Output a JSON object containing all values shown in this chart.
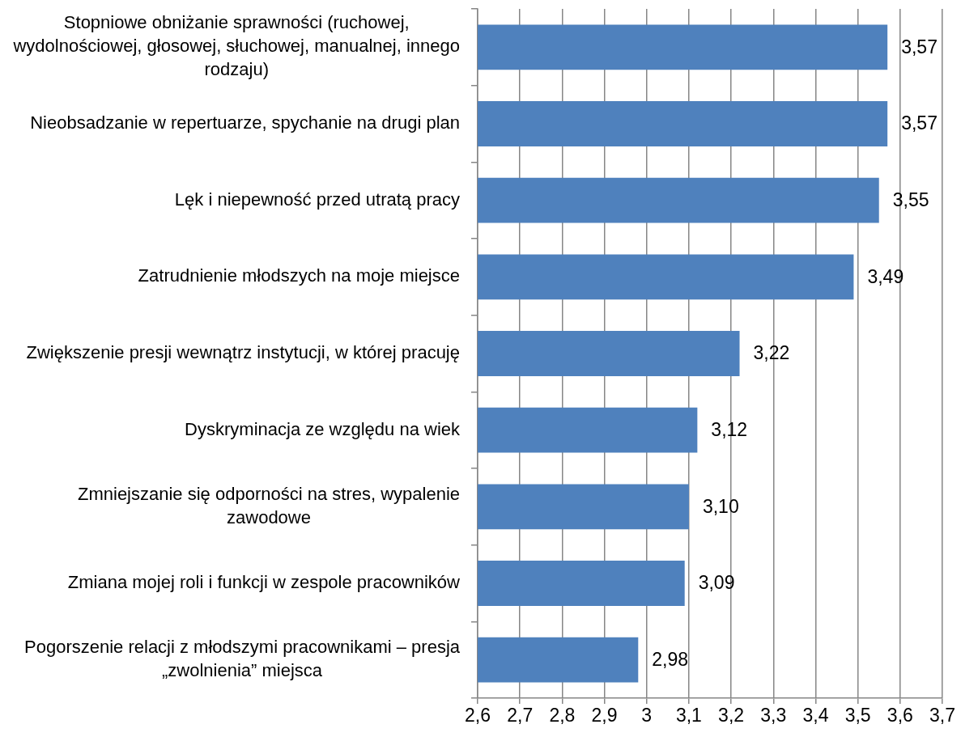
{
  "chart_data": {
    "type": "bar",
    "orientation": "horizontal",
    "categories": [
      "Stopniowe obniżanie sprawności (ruchowej, wydolnościowej, głosowej, słuchowej, manualnej, innego rodzaju)",
      "Nieobsadzanie w repertuarze, spychanie na drugi plan",
      "Lęk i niepewność przed utratą pracy",
      "Zatrudnienie młodszych na moje miejsce",
      "Zwiększenie presji wewnątrz instytucji, w której pracuję",
      "Dyskryminacja ze względu na wiek",
      "Zmniejszanie się odporności na stres, wypalenie zawodowe",
      "Zmiana mojej roli i funkcji w zespole pracowników",
      "Pogorszenie relacji z młodszymi pracownikami – presja „zwolnienia” miejsca"
    ],
    "values": [
      3.57,
      3.57,
      3.55,
      3.49,
      3.22,
      3.12,
      3.1,
      3.09,
      2.98
    ],
    "value_labels": [
      "3,57",
      "3,57",
      "3,55",
      "3,49",
      "3,22",
      "3,12",
      "3,10",
      "3,09",
      "2,98"
    ],
    "color": "#4f81bd",
    "xlim": [
      2.6,
      3.7
    ],
    "xticks": [
      {
        "value": 2.6,
        "label": "2,6"
      },
      {
        "value": 2.7,
        "label": "2,7"
      },
      {
        "value": 2.8,
        "label": "2,8"
      },
      {
        "value": 2.9,
        "label": "2,9"
      },
      3,
      {
        "value": 3.1,
        "label": "3,1"
      },
      {
        "value": 3.2,
        "label": "3,2"
      },
      {
        "value": 3.3,
        "label": "3,3"
      },
      {
        "value": 3.4,
        "label": "3,4"
      },
      {
        "value": 3.5,
        "label": "3,5"
      },
      {
        "value": 3.6,
        "label": "3,6"
      },
      {
        "value": 3.7,
        "label": "3,7"
      }
    ],
    "grid": "x"
  }
}
